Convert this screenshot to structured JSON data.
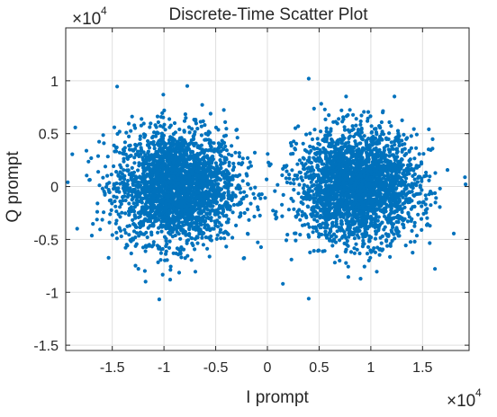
{
  "chart_data": {
    "type": "scatter",
    "title": "Discrete-Time Scatter Plot",
    "xlabel": "I prompt",
    "ylabel": "Q prompt",
    "x_multiplier": {
      "base": "×10",
      "exponent": "4"
    },
    "y_multiplier": {
      "base": "×10",
      "exponent": "4"
    },
    "xlim": [
      -19500,
      19500
    ],
    "ylim": [
      -15500,
      15000
    ],
    "x_ticks": [
      -15000,
      -10000,
      -5000,
      0,
      5000,
      10000,
      15000
    ],
    "x_tick_labels": [
      "-1.5",
      "-1",
      "-0.5",
      "0",
      "0.5",
      "1",
      "1.5"
    ],
    "y_ticks": [
      -15000,
      -10000,
      -5000,
      0,
      5000,
      10000
    ],
    "y_tick_labels": [
      "-1.5",
      "-1",
      "-0.5",
      "0",
      "0.5",
      "1"
    ],
    "grid": true,
    "marker_color": "#0072BD",
    "clusters": [
      {
        "center_x": -8800,
        "center_y": 0,
        "approx_extent_x": [
          -19000,
          -500
        ],
        "approx_extent_y": [
          -9000,
          8500
        ]
      },
      {
        "center_x": 8800,
        "center_y": 0,
        "approx_extent_x": [
          500,
          19000
        ],
        "approx_extent_y": [
          -8500,
          8500
        ]
      }
    ],
    "outliers": [
      {
        "x": 4000,
        "y": 10200
      },
      {
        "x": 1500,
        "y": -9200
      },
      {
        "x": 4000,
        "y": -10600
      },
      {
        "x": -19300,
        "y": 400
      },
      {
        "x": -9400,
        "y": -8800
      }
    ]
  }
}
